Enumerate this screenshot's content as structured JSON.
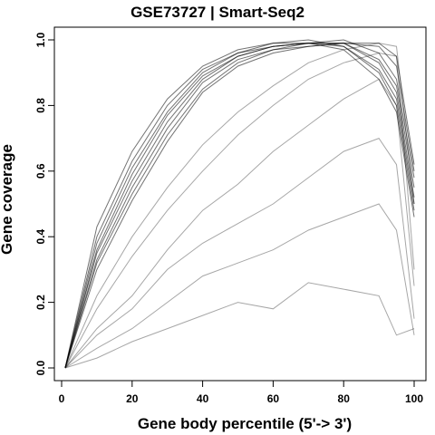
{
  "chart_data": {
    "type": "line",
    "title": "GSE73727 | Smart-Seq2",
    "xlabel": "Gene body percentile (5'-> 3')",
    "ylabel": "Gene coverage",
    "xlim": [
      0,
      100
    ],
    "ylim": [
      0,
      1
    ],
    "xticks": [
      0,
      20,
      40,
      60,
      80,
      100
    ],
    "yticks": [
      0.0,
      0.2,
      0.4,
      0.6,
      0.8,
      1.0
    ],
    "ytick_labels": [
      "0.0",
      "0.2",
      "0.4",
      "0.6",
      "0.8",
      "1.0"
    ],
    "x": [
      1,
      10,
      20,
      30,
      40,
      50,
      60,
      70,
      80,
      90,
      95,
      100
    ],
    "line_color": "#000000",
    "series": [
      {
        "values": [
          0.0,
          0.43,
          0.66,
          0.82,
          0.92,
          0.97,
          0.99,
          0.99,
          0.97,
          0.88,
          0.78,
          0.46
        ]
      },
      {
        "values": [
          0.0,
          0.4,
          0.63,
          0.8,
          0.91,
          0.96,
          0.99,
          1.0,
          0.98,
          0.9,
          0.8,
          0.48
        ]
      },
      {
        "values": [
          0.0,
          0.38,
          0.61,
          0.78,
          0.9,
          0.96,
          0.98,
          0.99,
          0.98,
          0.91,
          0.82,
          0.5
        ]
      },
      {
        "values": [
          0.0,
          0.36,
          0.59,
          0.77,
          0.89,
          0.95,
          0.98,
          0.99,
          0.99,
          0.93,
          0.84,
          0.52
        ]
      },
      {
        "values": [
          0.0,
          0.35,
          0.57,
          0.75,
          0.88,
          0.95,
          0.98,
          0.99,
          0.99,
          0.94,
          0.86,
          0.55
        ]
      },
      {
        "values": [
          0.0,
          0.33,
          0.55,
          0.73,
          0.87,
          0.94,
          0.97,
          0.99,
          1.0,
          0.96,
          0.88,
          0.58
        ]
      },
      {
        "values": [
          0.0,
          0.32,
          0.53,
          0.71,
          0.85,
          0.93,
          0.97,
          0.98,
          0.99,
          0.98,
          0.92,
          0.6
        ]
      },
      {
        "values": [
          0.0,
          0.3,
          0.51,
          0.69,
          0.84,
          0.92,
          0.96,
          0.98,
          0.99,
          0.99,
          0.95,
          0.62
        ]
      },
      {
        "values": [
          0.0,
          0.22,
          0.4,
          0.55,
          0.68,
          0.78,
          0.86,
          0.93,
          0.97,
          0.99,
          0.98,
          0.5
        ]
      },
      {
        "values": [
          0.0,
          0.18,
          0.34,
          0.48,
          0.6,
          0.71,
          0.8,
          0.88,
          0.93,
          0.96,
          0.95,
          0.3
        ]
      },
      {
        "values": [
          0.0,
          0.12,
          0.22,
          0.36,
          0.48,
          0.56,
          0.66,
          0.74,
          0.82,
          0.88,
          0.8,
          0.25
        ]
      },
      {
        "values": [
          0.0,
          0.1,
          0.18,
          0.3,
          0.38,
          0.44,
          0.5,
          0.58,
          0.66,
          0.7,
          0.62,
          0.15
        ]
      },
      {
        "values": [
          0.0,
          0.06,
          0.12,
          0.2,
          0.28,
          0.32,
          0.36,
          0.42,
          0.46,
          0.5,
          0.42,
          0.1
        ]
      },
      {
        "values": [
          0.0,
          0.03,
          0.08,
          0.12,
          0.16,
          0.2,
          0.18,
          0.26,
          0.24,
          0.22,
          0.1,
          0.12
        ]
      }
    ]
  }
}
